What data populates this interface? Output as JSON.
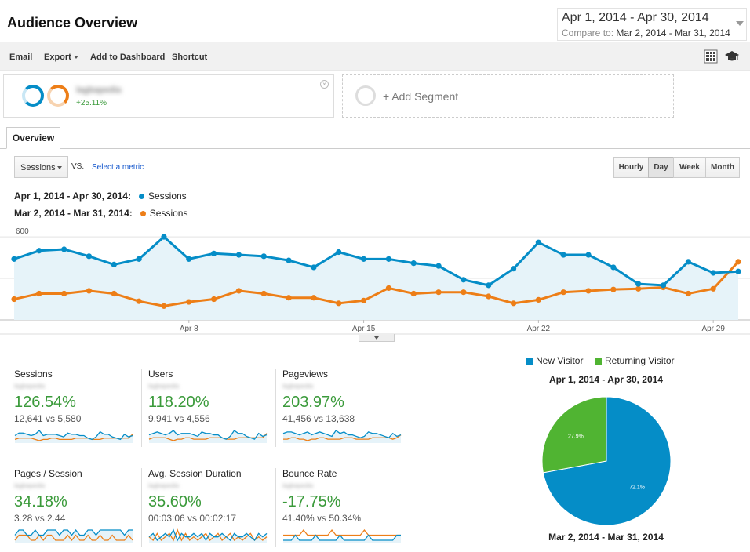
{
  "header": {
    "title": "Audience Overview",
    "date_range": "Apr 1, 2014 - Apr 30, 2014",
    "compare_label": "Compare to:",
    "compare_range": "Mar 2, 2014 - Mar 31, 2014"
  },
  "toolbar": {
    "email": "Email",
    "export": "Export",
    "add_to_dashboard": "Add to Dashboard",
    "shortcut": "Shortcut",
    "icons": [
      "grid-icon",
      "graduation-cap-icon"
    ]
  },
  "segments": {
    "active": {
      "name": "lagbapedia",
      "change": "+25.11%"
    },
    "add_label": "+ Add Segment"
  },
  "tabs": {
    "overview": "Overview"
  },
  "chart_controls": {
    "metric": "Sessions",
    "vs": "VS.",
    "select_metric": "Select a metric",
    "granularity": [
      "Hourly",
      "Day",
      "Week",
      "Month"
    ],
    "active_granularity": "Day"
  },
  "colors": {
    "current": "#058dc7",
    "previous": "#ed7e17",
    "new_visitor": "#058dc7",
    "returning_visitor": "#50b432"
  },
  "legend": {
    "current": {
      "range": "Apr 1, 2014 - Apr 30, 2014:",
      "metric": "Sessions"
    },
    "previous": {
      "range": "Mar 2, 2014 - Mar 31, 2014:",
      "metric": "Sessions"
    }
  },
  "chart_data": [
    {
      "type": "line",
      "title": "",
      "x": [
        "Apr 1",
        "Apr 2",
        "Apr 3",
        "Apr 4",
        "Apr 5",
        "Apr 6",
        "Apr 7",
        "Apr 8",
        "Apr 9",
        "Apr 10",
        "Apr 11",
        "Apr 12",
        "Apr 13",
        "Apr 14",
        "Apr 15",
        "Apr 16",
        "Apr 17",
        "Apr 18",
        "Apr 19",
        "Apr 20",
        "Apr 21",
        "Apr 22",
        "Apr 23",
        "Apr 24",
        "Apr 25",
        "Apr 26",
        "Apr 27",
        "Apr 28",
        "Apr 29",
        "Apr 30"
      ],
      "x_tick_labels": [
        "Apr 8",
        "Apr 15",
        "Apr 22",
        "Apr 29"
      ],
      "y_tick_labels": [
        "600",
        "300"
      ],
      "ylim": [
        0,
        680
      ],
      "grid": true,
      "series": [
        {
          "name": "Sessions",
          "values": [
            440,
            500,
            510,
            460,
            400,
            440,
            600,
            440,
            480,
            470,
            460,
            430,
            380,
            490,
            440,
            440,
            410,
            390,
            290,
            250,
            370,
            560,
            470,
            470,
            380,
            260,
            250,
            420,
            340,
            350
          ]
        },
        {
          "name": "Sessions",
          "values": [
            150,
            190,
            190,
            210,
            190,
            135,
            100,
            130,
            150,
            210,
            190,
            160,
            160,
            120,
            140,
            230,
            190,
            200,
            200,
            170,
            120,
            145,
            200,
            210,
            220,
            225,
            235,
            190,
            225,
            420
          ]
        }
      ]
    },
    {
      "type": "pie",
      "title": "",
      "categories": [
        "New Visitor",
        "Returning Visitor"
      ],
      "values": [
        72.1,
        27.9
      ],
      "labels": [
        "72.1%",
        "27.9%"
      ],
      "range_top": "Apr 1, 2014 - Apr 30, 2014",
      "range_bottom": "Mar 2, 2014 - Mar 31, 2014"
    }
  ],
  "scorecards": [
    {
      "name": "Sessions",
      "segment": "lagbapedia",
      "change": "126.54%",
      "values": "12,641 vs 5,580",
      "spark_current": [
        4,
        6,
        6,
        5,
        4,
        5,
        8,
        4,
        5,
        5,
        5,
        4,
        3,
        6,
        5,
        5,
        4,
        4,
        2,
        1,
        3,
        7,
        5,
        5,
        3,
        2,
        1,
        5,
        3,
        4
      ],
      "spark_previous": [
        1,
        2,
        2,
        2,
        2,
        1,
        0,
        1,
        1,
        2,
        2,
        1,
        1,
        1,
        1,
        2,
        2,
        2,
        2,
        1,
        1,
        1,
        2,
        2,
        2,
        2,
        2,
        2,
        2,
        5
      ]
    },
    {
      "name": "Users",
      "segment": "lagbapedia",
      "change": "118.20%",
      "values": "9,941 vs 4,556",
      "spark_current": [
        4,
        5,
        6,
        5,
        4,
        5,
        7,
        4,
        5,
        5,
        5,
        4,
        3,
        6,
        5,
        5,
        4,
        4,
        2,
        1,
        3,
        7,
        5,
        5,
        3,
        2,
        1,
        5,
        3,
        4
      ],
      "spark_previous": [
        1,
        2,
        2,
        2,
        2,
        1,
        0,
        1,
        1,
        2,
        2,
        1,
        1,
        1,
        1,
        2,
        2,
        2,
        2,
        1,
        1,
        1,
        2,
        2,
        2,
        2,
        2,
        2,
        2,
        5
      ]
    },
    {
      "name": "Pageviews",
      "segment": "lagbapedia",
      "change": "203.97%",
      "values": "41,456 vs 13,638",
      "spark_current": [
        5,
        6,
        6,
        5,
        4,
        5,
        6,
        4,
        5,
        6,
        5,
        4,
        3,
        7,
        5,
        6,
        4,
        4,
        3,
        2,
        3,
        6,
        5,
        5,
        4,
        3,
        2,
        5,
        3,
        4
      ],
      "spark_previous": [
        1,
        1,
        2,
        2,
        1,
        1,
        0,
        1,
        1,
        2,
        2,
        1,
        1,
        1,
        1,
        2,
        2,
        2,
        1,
        1,
        1,
        1,
        2,
        2,
        2,
        2,
        2,
        1,
        2,
        4
      ]
    },
    {
      "name": "Pages / Session",
      "segment": "lagbapedia",
      "change": "34.18%",
      "values": "3.28 vs 2.44",
      "spark_current": [
        3,
        4,
        4,
        3,
        3,
        4,
        3,
        3,
        4,
        4,
        4,
        3,
        4,
        4,
        3,
        4,
        3,
        3,
        4,
        4,
        3,
        4,
        4,
        4,
        4,
        4,
        4,
        3,
        4,
        4
      ],
      "spark_previous": [
        2,
        3,
        3,
        3,
        2,
        2,
        3,
        2,
        3,
        3,
        2,
        2,
        2,
        3,
        2,
        3,
        2,
        2,
        3,
        2,
        2,
        3,
        2,
        2,
        3,
        2,
        2,
        2,
        3,
        2
      ]
    },
    {
      "name": "Avg. Session Duration",
      "segment": "lagbapedia",
      "change": "35.60%",
      "values": "00:03:06 vs 00:02:17",
      "spark_current": [
        3,
        4,
        2,
        3,
        4,
        3,
        5,
        2,
        4,
        3,
        3,
        4,
        3,
        4,
        2,
        4,
        3,
        3,
        4,
        3,
        2,
        4,
        3,
        3,
        4,
        3,
        2,
        4,
        3,
        4
      ],
      "spark_previous": [
        3,
        2,
        4,
        2,
        3,
        4,
        2,
        5,
        2,
        4,
        2,
        3,
        2,
        3,
        4,
        2,
        3,
        4,
        2,
        3,
        4,
        2,
        3,
        2,
        3,
        4,
        2,
        3,
        2,
        3
      ]
    },
    {
      "name": "Bounce Rate",
      "segment": "lagbapedia",
      "change": "-17.75%",
      "values": "41.40% vs 50.34%",
      "spark_current": [
        3,
        3,
        3,
        4,
        3,
        3,
        3,
        3,
        4,
        3,
        3,
        3,
        3,
        3,
        4,
        3,
        3,
        3,
        3,
        3,
        3,
        4,
        3,
        3,
        3,
        3,
        3,
        3,
        4,
        4
      ],
      "spark_previous": [
        4,
        4,
        4,
        4,
        4,
        5,
        4,
        4,
        4,
        4,
        4,
        4,
        5,
        4,
        4,
        4,
        4,
        4,
        4,
        4,
        5,
        4,
        4,
        4,
        4,
        4,
        4,
        4,
        4,
        4
      ]
    }
  ],
  "pie_legend": {
    "new_visitor": "New Visitor",
    "returning_visitor": "Returning Visitor"
  }
}
